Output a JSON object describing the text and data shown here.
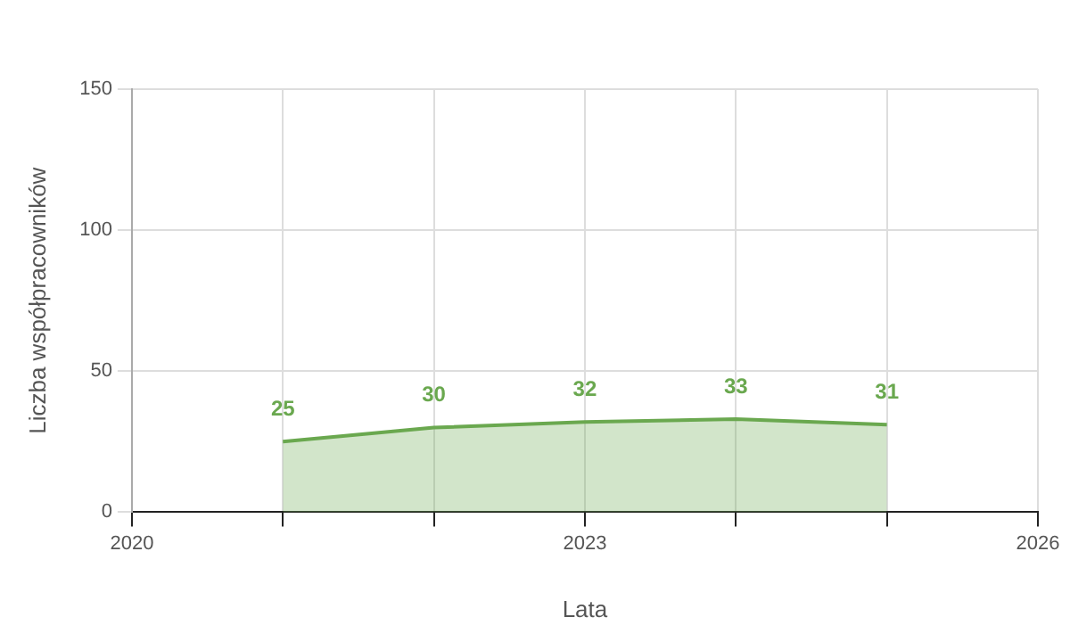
{
  "chart_data": {
    "type": "area",
    "xlabel": "Lata",
    "ylabel": "Liczba współpracowników",
    "x": [
      2021,
      2022,
      2023,
      2024,
      2025
    ],
    "series": [
      {
        "color": "#6aa84f",
        "values": [
          25,
          30,
          32,
          33,
          31
        ]
      }
    ],
    "xlim": [
      2020,
      2026
    ],
    "xticks": [
      2020,
      {
        "value": 2021,
        "label": null
      },
      {
        "value": 2022,
        "label": null
      },
      2023,
      {
        "value": 2024,
        "label": null
      },
      {
        "value": 2025,
        "label": null
      },
      2026
    ],
    "ylim": [
      0,
      150
    ],
    "yticks": [
      0,
      50,
      100,
      150
    ],
    "grid": true,
    "legend": false,
    "data_labels": true,
    "marker": "none"
  }
}
